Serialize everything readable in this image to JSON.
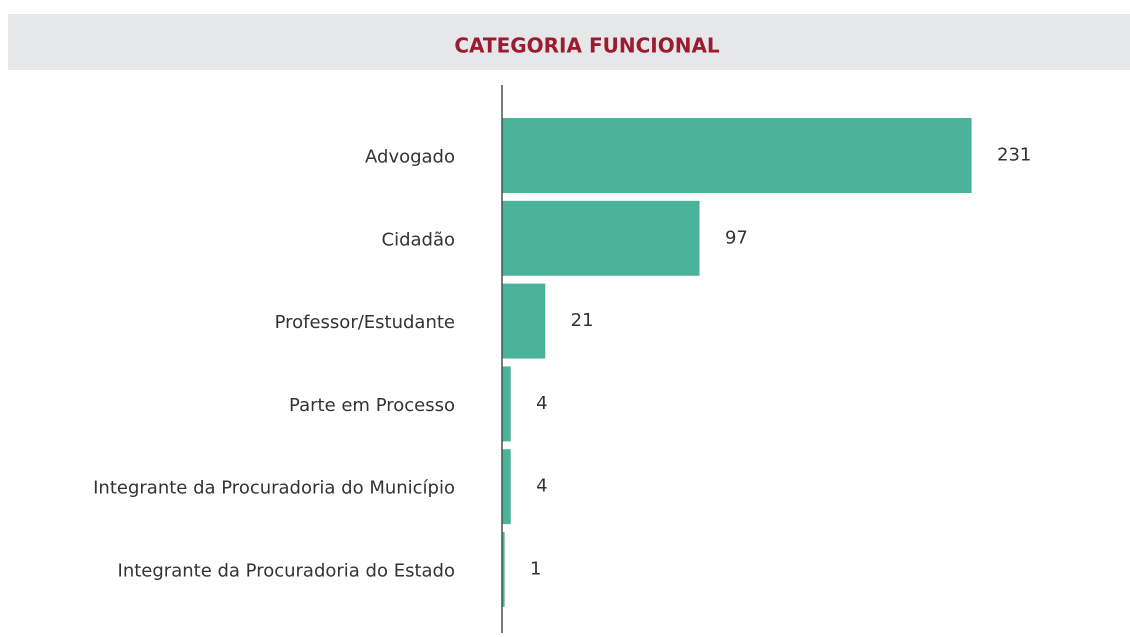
{
  "chart_data": {
    "type": "bar",
    "orientation": "horizontal",
    "title": "CATEGORIA FUNCIONAL",
    "categories": [
      "Advogado",
      "Cidadão",
      "Professor/Estudante",
      "Parte em Processo",
      "Integrante da Procuradoria do Município",
      "Integrante da Procuradoria do Estado"
    ],
    "values": [
      231,
      97,
      21,
      4,
      4,
      1
    ],
    "color": "#4cb39b"
  }
}
